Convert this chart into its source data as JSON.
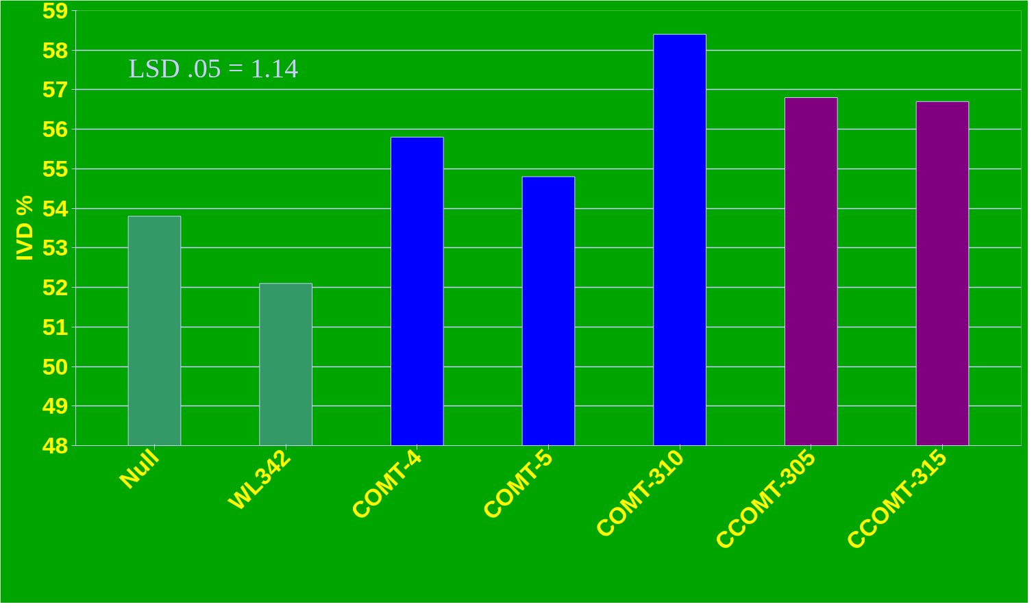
{
  "chart_data": {
    "type": "bar",
    "ylabel": "IVD %",
    "categories": [
      "Null",
      "WL342",
      "COMT-4",
      "COMT-5",
      "COMT-310",
      "CCOMT-305",
      "CCOMT-315"
    ],
    "values": [
      53.8,
      52.1,
      55.8,
      54.8,
      58.4,
      56.8,
      56.7
    ],
    "colors": [
      "#339966",
      "#339966",
      "#0000ff",
      "#0000ff",
      "#0000ff",
      "#800080",
      "#800080"
    ],
    "ylim": [
      48,
      59
    ],
    "yticks": [
      48,
      49,
      50,
      51,
      52,
      53,
      54,
      55,
      56,
      57,
      58,
      59
    ],
    "grid": "y",
    "annotations": [
      {
        "text": "LSD .05 = 1.14"
      }
    ]
  }
}
